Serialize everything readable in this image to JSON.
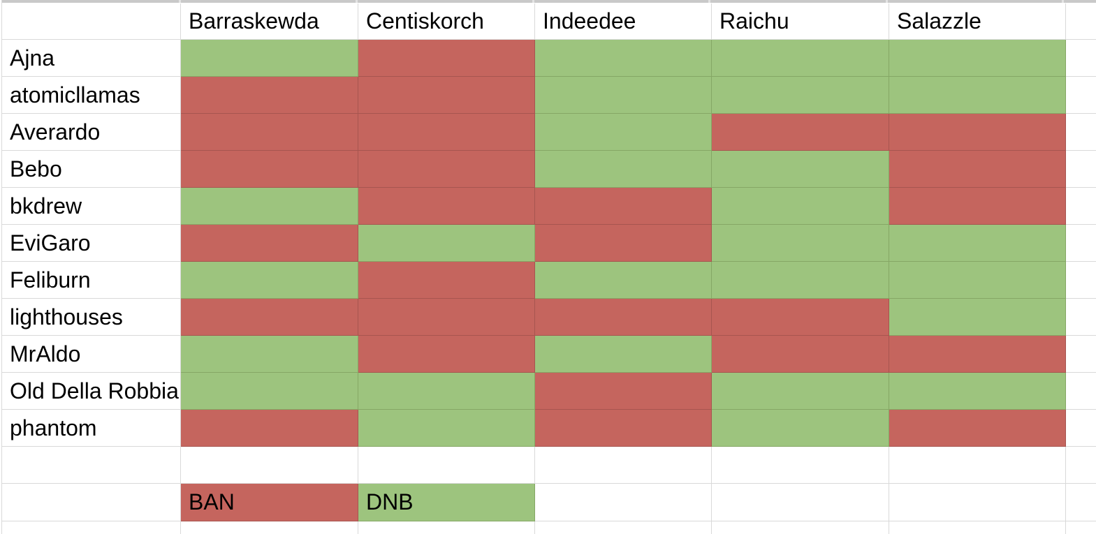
{
  "columns": [
    "Barraskewda",
    "Centiskorch",
    "Indeedee",
    "Raichu",
    "Salazzle"
  ],
  "rows": [
    {
      "label": "Ajna",
      "values": [
        "DNB",
        "BAN",
        "DNB",
        "DNB",
        "DNB"
      ]
    },
    {
      "label": "atomicllamas",
      "values": [
        "BAN",
        "BAN",
        "DNB",
        "DNB",
        "DNB"
      ]
    },
    {
      "label": "Averardo",
      "values": [
        "BAN",
        "BAN",
        "DNB",
        "BAN",
        "BAN"
      ]
    },
    {
      "label": "Bebo",
      "values": [
        "BAN",
        "BAN",
        "DNB",
        "DNB",
        "BAN"
      ]
    },
    {
      "label": "bkdrew",
      "values": [
        "DNB",
        "BAN",
        "BAN",
        "DNB",
        "BAN"
      ]
    },
    {
      "label": "EviGaro",
      "values": [
        "BAN",
        "DNB",
        "BAN",
        "DNB",
        "DNB"
      ]
    },
    {
      "label": "Feliburn",
      "values": [
        "DNB",
        "BAN",
        "DNB",
        "DNB",
        "DNB"
      ]
    },
    {
      "label": "lighthouses",
      "values": [
        "BAN",
        "BAN",
        "BAN",
        "BAN",
        "DNB"
      ]
    },
    {
      "label": "MrAldo",
      "values": [
        "DNB",
        "BAN",
        "DNB",
        "BAN",
        "BAN"
      ]
    },
    {
      "label": "Old Della Robbia",
      "values": [
        "DNB",
        "DNB",
        "BAN",
        "DNB",
        "DNB"
      ]
    },
    {
      "label": "phantom",
      "values": [
        "BAN",
        "DNB",
        "BAN",
        "DNB",
        "BAN"
      ]
    }
  ],
  "legend": {
    "items": [
      {
        "label": "BAN",
        "value": "BAN"
      },
      {
        "label": "DNB",
        "value": "DNB"
      }
    ]
  },
  "colors": {
    "ban_fill": "#c5655e",
    "dnb_fill": "#9dc47e",
    "ban_gridline": "#a75550",
    "dnb_gridline": "#85a765",
    "gridline": "#d9d9d9",
    "header_strip": "#c9c9c9",
    "header_strip_gap": "#e3e3e3",
    "text": "#000000"
  }
}
